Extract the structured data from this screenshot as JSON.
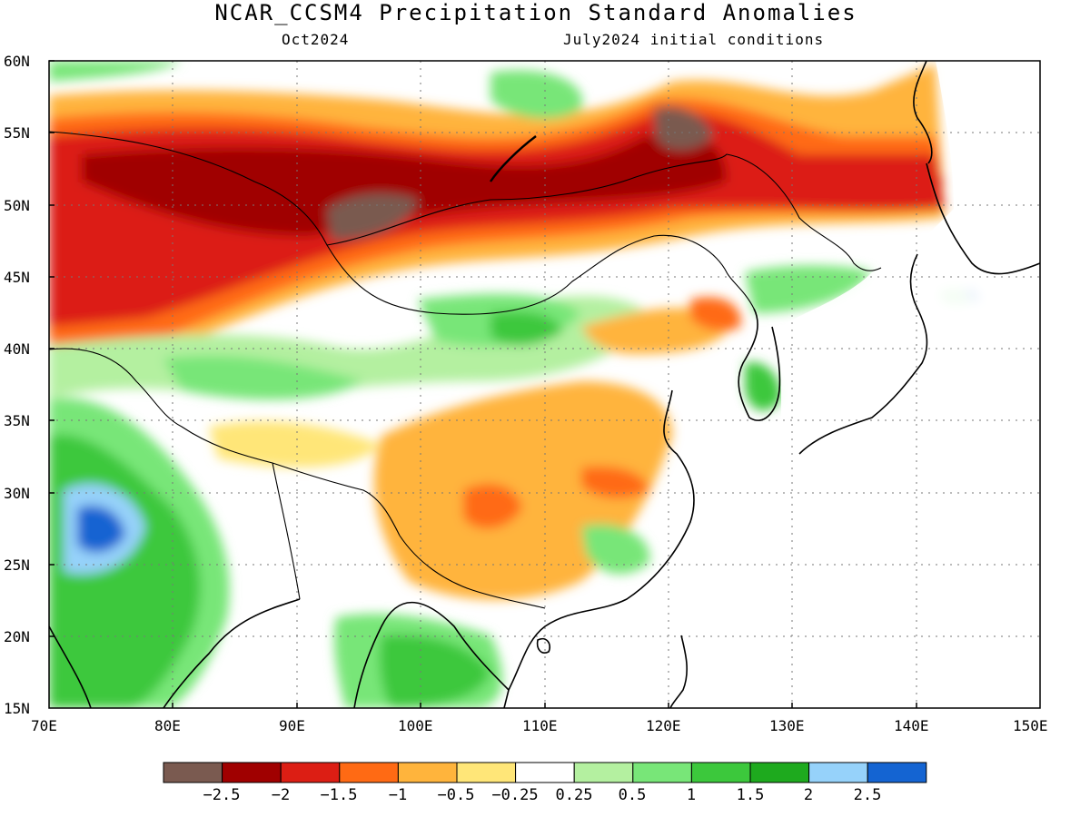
{
  "title": "NCAR_CCSM4 Precipitation Standard Anomalies",
  "subtitle_left": "Oct2024",
  "subtitle_right": "July2024 initial conditions",
  "lat_labels": [
    "60N",
    "55N",
    "50N",
    "45N",
    "40N",
    "35N",
    "30N",
    "25N",
    "20N",
    "15N"
  ],
  "lon_labels": [
    "70E",
    "80E",
    "90E",
    "100E",
    "110E",
    "120E",
    "130E",
    "140E",
    "150E"
  ],
  "colorbar": {
    "colors": [
      "#7a5a50",
      "#a00000",
      "#dc1e14",
      "#ff6a14",
      "#ffb43c",
      "#ffe678",
      "#ffffff",
      "#b4f0a0",
      "#78e678",
      "#3cc83c",
      "#1eaa1e",
      "#96d2fa",
      "#1464d2"
    ],
    "labels": [
      "−2.5",
      "−2",
      "−1.5",
      "−1",
      "−0.5",
      "−0.25",
      "0.25",
      "0.5",
      "1",
      "1.5",
      "2",
      "2.5"
    ]
  }
}
